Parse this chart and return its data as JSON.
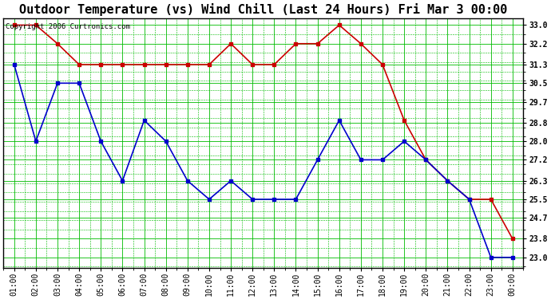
{
  "title": "Outdoor Temperature (vs) Wind Chill (Last 24 Hours) Fri Mar 3 00:00",
  "copyright": "Copyright 2006 Curtronics.com",
  "x_labels": [
    "01:00",
    "02:00",
    "03:00",
    "04:00",
    "05:00",
    "06:00",
    "07:00",
    "08:00",
    "09:00",
    "10:00",
    "11:00",
    "12:00",
    "13:00",
    "14:00",
    "15:00",
    "16:00",
    "17:00",
    "18:00",
    "19:00",
    "20:00",
    "21:00",
    "22:00",
    "23:00",
    "00:00"
  ],
  "temp_data": [
    31.3,
    28.0,
    30.5,
    30.5,
    28.0,
    26.3,
    28.9,
    28.0,
    26.3,
    25.5,
    26.3,
    25.5,
    25.5,
    25.5,
    27.2,
    28.9,
    27.2,
    27.2,
    28.0,
    27.2,
    26.3,
    25.5,
    23.0,
    23.0
  ],
  "wind_chill_data": [
    33.0,
    33.0,
    32.2,
    31.3,
    31.3,
    31.3,
    31.3,
    31.3,
    31.3,
    31.3,
    32.2,
    31.3,
    31.3,
    32.2,
    32.2,
    33.0,
    32.2,
    31.3,
    28.9,
    27.2,
    26.3,
    25.5,
    25.5,
    23.8
  ],
  "temp_color": "#0000cc",
  "wind_chill_color": "#cc0000",
  "bg_color": "#ffffff",
  "plot_bg_color": "#ffffff",
  "grid_major_color": "#00bb00",
  "grid_minor_color": "#00bb00",
  "y_ticks": [
    23.0,
    23.8,
    24.7,
    25.5,
    26.3,
    27.2,
    28.0,
    28.8,
    29.7,
    30.5,
    31.3,
    32.2,
    33.0
  ],
  "ylim": [
    22.55,
    33.3
  ],
  "title_fontsize": 11,
  "axis_fontsize": 7,
  "copyright_fontsize": 6.5,
  "figsize": [
    6.9,
    3.75
  ],
  "dpi": 100
}
